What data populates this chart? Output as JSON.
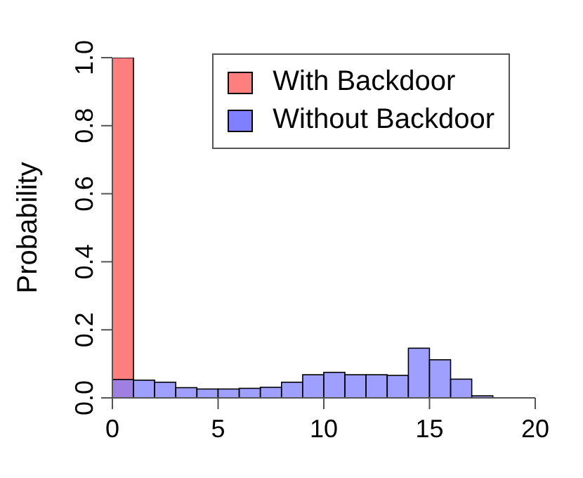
{
  "chart_data": {
    "type": "histogram",
    "ylabel": "Probability",
    "bins": [
      0,
      1,
      2,
      3,
      4,
      5,
      6,
      7,
      8,
      9,
      10,
      11,
      12,
      13,
      14,
      15,
      16,
      17,
      18
    ],
    "series": [
      {
        "name": "With Backdoor",
        "color": "#ff7f7f",
        "values": [
          1.0,
          0,
          0,
          0,
          0,
          0,
          0,
          0,
          0,
          0,
          0,
          0,
          0,
          0,
          0,
          0,
          0,
          0
        ]
      },
      {
        "name": "Without Backdoor",
        "color": "#7f7fff",
        "values": [
          0.054,
          0.052,
          0.046,
          0.03,
          0.026,
          0.026,
          0.028,
          0.031,
          0.046,
          0.068,
          0.075,
          0.068,
          0.068,
          0.066,
          0.146,
          0.112,
          0.055,
          0.006
        ]
      }
    ],
    "xlim": [
      0,
      20
    ],
    "xticks": [
      0,
      5,
      10,
      15,
      20
    ],
    "ylim": [
      0,
      1
    ],
    "yticks": [
      {
        "value": 0,
        "label": "0.0"
      },
      {
        "value": 0.2,
        "label": "0.2"
      },
      {
        "value": 0.4,
        "label": "0.4"
      },
      {
        "value": 0.6,
        "label": "0.6"
      },
      {
        "value": 0.8,
        "label": "0.8"
      },
      {
        "value": 1,
        "label": "1.0"
      }
    ],
    "legend": "top right",
    "grid": false
  }
}
